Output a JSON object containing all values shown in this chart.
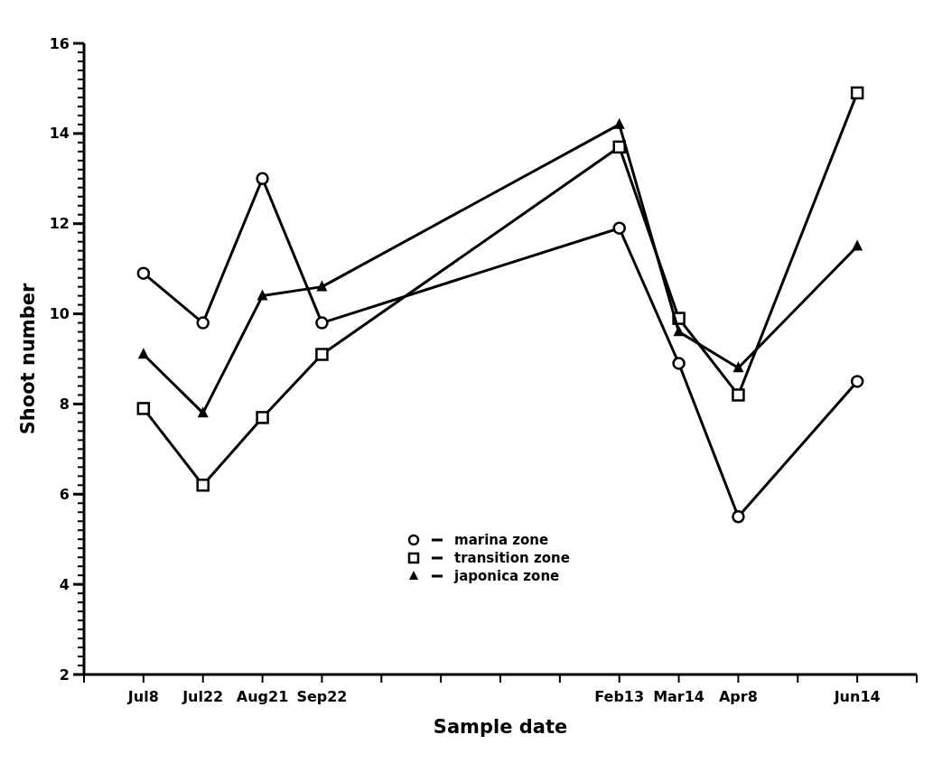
{
  "chart_data": {
    "type": "line",
    "xlabel": "Sample date",
    "ylabel": "Shoot number",
    "categories": [
      "Jul8",
      "Jul22",
      "Aug21",
      "Sep22",
      null,
      null,
      null,
      null,
      "Feb13",
      "Mar14",
      "Apr8",
      null,
      "Jun14"
    ],
    "ylim": [
      2,
      16
    ],
    "yticks": [
      2,
      4,
      6,
      8,
      10,
      12,
      14,
      16
    ],
    "legend": "bottom",
    "line_style": "solid",
    "series": [
      {
        "name": "marina zone",
        "color": "#000000",
        "marker": "circle",
        "values": [
          10.9,
          9.8,
          13.0,
          9.8,
          null,
          null,
          null,
          null,
          11.9,
          8.9,
          5.5,
          null,
          8.5
        ]
      },
      {
        "name": "transition zone",
        "color": "#000000",
        "marker": "square",
        "values": [
          7.9,
          6.2,
          7.7,
          9.1,
          null,
          null,
          null,
          null,
          13.7,
          9.9,
          8.2,
          null,
          14.9
        ]
      },
      {
        "name": "japonica zone",
        "color": "#000000",
        "marker": "triangle",
        "values": [
          9.1,
          7.8,
          10.4,
          10.6,
          null,
          null,
          null,
          null,
          14.2,
          9.6,
          8.8,
          null,
          11.5
        ]
      }
    ]
  }
}
